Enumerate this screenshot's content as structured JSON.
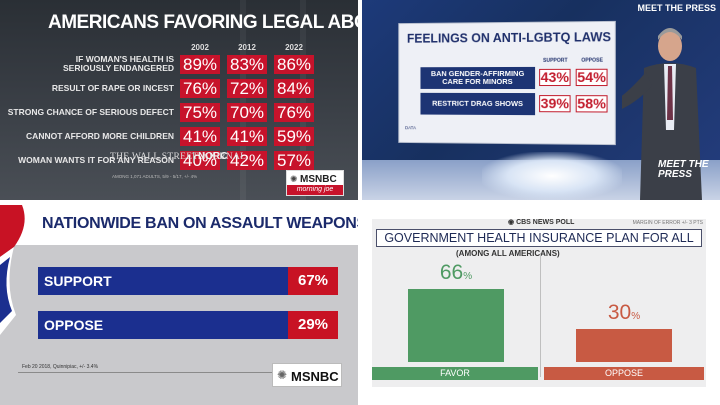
{
  "panels": {
    "abortion": {
      "title": "AMERICANS FAVORING LEGAL ABORTION",
      "source_wsj": "THE WALL STREET JOURNAL",
      "source_norc": "NORC",
      "source_note": "AMONG 1,071 ADULTS, 5/9 - 5/17, +/- 4%",
      "network": "MSNBC",
      "show": "morning joe",
      "network_icon": "peacock-icon",
      "accent": "#c7132b"
    },
    "lgbtq": {
      "title": "FEELINGS ON ANTI-LGBTQ LAWS",
      "data_label": "DATA",
      "show_logo_top": "MEET THE PRESS",
      "show_logo_bottom": "MEET THE PRESS",
      "accent": "#c21d2e"
    },
    "weapons": {
      "title": "NATIONWIDE BAN ON ASSAULT WEAPONS",
      "source": "Feb 20 2018, Quinnipiac, +/- 3.4%",
      "network": "MSNBC",
      "network_icon": "peacock-icon",
      "bar_color": "#1b2f8f",
      "pct_color": "#c81224"
    },
    "health": {
      "brand": "CBS NEWS POLL",
      "moe": "MARGIN OF ERROR +/- 3 PTS",
      "title": "GOVERNMENT HEALTH INSURANCE PLAN FOR ALL",
      "subtitle": "(AMONG ALL AMERICANS)",
      "brand_icon": "cbs-eye-icon",
      "colors": {
        "favor": "#4f9a63",
        "oppose": "#c85a43"
      }
    }
  },
  "chart_data": [
    {
      "type": "table",
      "title": "AMERICANS FAVORING LEGAL ABORTION",
      "columns": [
        "2002",
        "2012",
        "2022"
      ],
      "rows": [
        {
          "label": "IF WOMAN'S HEALTH IS SERIOUSLY ENDANGERED",
          "values": [
            "89%",
            "83%",
            "86%"
          ]
        },
        {
          "label": "RESULT OF RAPE OR INCEST",
          "values": [
            "76%",
            "72%",
            "84%"
          ]
        },
        {
          "label": "STRONG CHANCE OF SERIOUS DEFECT",
          "values": [
            "75%",
            "70%",
            "76%"
          ]
        },
        {
          "label": "CANNOT AFFORD MORE CHILDREN",
          "values": [
            "41%",
            "41%",
            "59%"
          ]
        },
        {
          "label": "WOMAN WANTS IT FOR ANY REASON",
          "values": [
            "40%",
            "42%",
            "57%"
          ]
        }
      ]
    },
    {
      "type": "table",
      "title": "FEELINGS ON ANTI-LGBTQ LAWS",
      "columns": [
        "SUPPORT",
        "OPPOSE"
      ],
      "rows": [
        {
          "label": "BAN GENDER-AFFIRMING CARE FOR MINORS",
          "values": [
            "43%",
            "54%"
          ]
        },
        {
          "label": "RESTRICT DRAG SHOWS",
          "values": [
            "39%",
            "58%"
          ]
        }
      ]
    },
    {
      "type": "bar",
      "title": "NATIONWIDE BAN ON ASSAULT WEAPONS",
      "categories": [
        "SUPPORT",
        "OPPOSE"
      ],
      "values": [
        67,
        29
      ],
      "labels": [
        "67%",
        "29%"
      ]
    },
    {
      "type": "bar",
      "title": "GOVERNMENT HEALTH INSURANCE PLAN FOR ALL",
      "subtitle": "(AMONG ALL AMERICANS)",
      "categories": [
        "FAVOR",
        "OPPOSE"
      ],
      "values": [
        66,
        30
      ],
      "labels": [
        "66",
        "30"
      ],
      "unit": "%"
    }
  ]
}
